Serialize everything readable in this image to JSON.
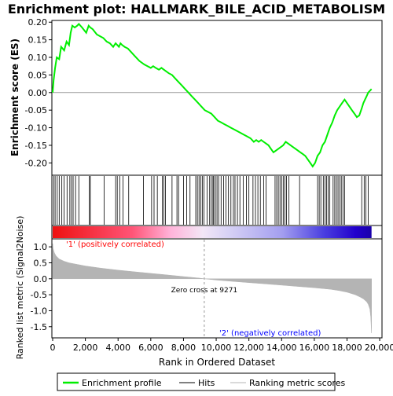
{
  "title": "Enrichment plot: HALLMARK_BILE_ACID_METABOLISM",
  "colors": {
    "profile": "#00ee00",
    "hits": "#000000",
    "metric": "#b4b4b4",
    "positive_label": "#ff0000",
    "negative_label": "#0000ff",
    "zero_line": "#999999"
  },
  "legend": {
    "profile": "Enrichment profile",
    "hits": "Hits",
    "metric": "Ranking metric scores"
  },
  "chart_data": [
    {
      "type": "line",
      "panel": "enrichment",
      "ylabel": "Enrichment score (ES)",
      "xlim": [
        0,
        20500
      ],
      "ylim": [
        -0.235,
        0.205
      ],
      "yticks": [
        0.2,
        0.15,
        0.1,
        0.05,
        0.0,
        -0.05,
        -0.1,
        -0.15,
        -0.2
      ],
      "ytick_labels": [
        "0.20",
        "0.15",
        "0.10",
        "0.05",
        "0.00",
        "-0.05",
        "-0.10",
        "-0.15",
        "-0.20"
      ],
      "series": [
        {
          "x": [
            0,
            60,
            150,
            250,
            400,
            520,
            700,
            850,
            1000,
            1100,
            1200,
            1350,
            1500,
            1600,
            1800,
            2050,
            2200,
            2300,
            2450,
            2700,
            2900,
            3100,
            3300,
            3500,
            3700,
            3850,
            3950,
            4050,
            4150,
            4250,
            4400,
            4600,
            4800,
            5000,
            5300,
            5600,
            5800,
            6000,
            6150,
            6300,
            6500,
            6650,
            6800,
            6950,
            7100,
            7300,
            7500,
            7700,
            7900,
            8100,
            8300,
            8500,
            8700,
            8900,
            9100,
            9300,
            9500,
            9700,
            9900,
            10100,
            10300,
            10500,
            10700,
            10900,
            11100,
            11300,
            11500,
            11700,
            11900,
            12100,
            12300,
            12450,
            12600,
            12750,
            12900,
            13050,
            13200,
            13350,
            13500,
            13650,
            13800,
            13950,
            14100,
            14250,
            14400,
            14550,
            14700,
            14850,
            15000,
            15150,
            15300,
            15450,
            15600,
            15750,
            15900,
            16050,
            16200,
            16350,
            16500,
            16650,
            16800,
            16950,
            17100,
            17250,
            17400,
            17550,
            17700,
            17850,
            18000,
            18150,
            18300,
            18450,
            18600,
            18750,
            18900,
            19000,
            19100,
            19200,
            19300,
            19400,
            19500
          ],
          "y": [
            0.0,
            0.035,
            0.07,
            0.1,
            0.095,
            0.13,
            0.12,
            0.145,
            0.135,
            0.17,
            0.19,
            0.185,
            0.19,
            0.195,
            0.185,
            0.17,
            0.19,
            0.185,
            0.18,
            0.165,
            0.16,
            0.155,
            0.145,
            0.14,
            0.13,
            0.14,
            0.135,
            0.13,
            0.14,
            0.135,
            0.13,
            0.125,
            0.115,
            0.105,
            0.09,
            0.08,
            0.075,
            0.07,
            0.075,
            0.07,
            0.065,
            0.07,
            0.065,
            0.06,
            0.055,
            0.05,
            0.04,
            0.03,
            0.02,
            0.01,
            0.0,
            -0.01,
            -0.02,
            -0.03,
            -0.04,
            -0.05,
            -0.055,
            -0.06,
            -0.07,
            -0.08,
            -0.085,
            -0.09,
            -0.095,
            -0.1,
            -0.105,
            -0.11,
            -0.115,
            -0.12,
            -0.125,
            -0.13,
            -0.14,
            -0.135,
            -0.14,
            -0.135,
            -0.14,
            -0.145,
            -0.15,
            -0.16,
            -0.17,
            -0.165,
            -0.16,
            -0.155,
            -0.15,
            -0.14,
            -0.145,
            -0.15,
            -0.155,
            -0.16,
            -0.165,
            -0.17,
            -0.175,
            -0.18,
            -0.19,
            -0.2,
            -0.21,
            -0.2,
            -0.18,
            -0.17,
            -0.15,
            -0.14,
            -0.12,
            -0.1,
            -0.085,
            -0.065,
            -0.05,
            -0.04,
            -0.03,
            -0.02,
            -0.03,
            -0.04,
            -0.05,
            -0.06,
            -0.07,
            -0.065,
            -0.045,
            -0.03,
            -0.02,
            -0.01,
            0.0,
            0.005,
            0.01
          ]
        }
      ]
    },
    {
      "type": "scatter",
      "panel": "hits",
      "xlim": [
        0,
        20500
      ],
      "hit_positions": [
        60,
        150,
        280,
        400,
        560,
        700,
        880,
        1050,
        1150,
        1250,
        1400,
        1600,
        2250,
        2300,
        3150,
        3850,
        3950,
        4100,
        4300,
        4650,
        5550,
        6050,
        6200,
        6400,
        6700,
        6800,
        6900,
        7300,
        7600,
        7700,
        8000,
        8200,
        8400,
        8750,
        8850,
        8950,
        9050,
        9150,
        9250,
        9450,
        9600,
        9700,
        9800,
        9850,
        9950,
        10050,
        10150,
        10300,
        10450,
        10600,
        10750,
        10900,
        11050,
        11150,
        11300,
        11450,
        11650,
        11850,
        12000,
        12250,
        12400,
        12550,
        12700,
        12900,
        13050,
        13600,
        13700,
        13800,
        13900,
        14000,
        14100,
        14200,
        14300,
        14450,
        15100,
        16200,
        16300,
        16400,
        16550,
        16650,
        16750,
        16850,
        16950,
        17150,
        17250,
        17350,
        17450,
        17550,
        17650,
        17750,
        17850,
        18900,
        19050,
        19150,
        19300
      ]
    },
    {
      "type": "area",
      "panel": "ranked_metric",
      "ylabel": "Ranked list metric (Signal2Noise)",
      "xlabel": "Rank in Ordered Dataset",
      "xlim": [
        0,
        20500
      ],
      "ylim": [
        -1.85,
        1.25
      ],
      "yticks": [
        1.0,
        0.5,
        0.0,
        -0.5,
        -1.0,
        -1.5
      ],
      "ytick_labels": [
        "1.0",
        "0.5",
        "0.0",
        "-0.5",
        "-1.0",
        "-1.5"
      ],
      "xticks": [
        0,
        2000,
        4000,
        6000,
        8000,
        10000,
        12000,
        14000,
        16000,
        18000,
        20000
      ],
      "xtick_labels": [
        "0",
        "2,000",
        "4,000",
        "6,000",
        "8,000",
        "10,000",
        "12,000",
        "14,000",
        "16,000",
        "18,000",
        "20,000"
      ],
      "x": [
        0,
        30,
        100,
        200,
        400,
        700,
        1000,
        1500,
        2000,
        3000,
        4000,
        5000,
        6000,
        7000,
        8000,
        9000,
        9271,
        10000,
        11000,
        12000,
        13000,
        14000,
        15000,
        16000,
        17000,
        17500,
        18000,
        18500,
        18800,
        19000,
        19200,
        19300,
        19400,
        19450,
        19500
      ],
      "values": [
        1.1,
        0.95,
        0.82,
        0.72,
        0.62,
        0.55,
        0.5,
        0.45,
        0.4,
        0.33,
        0.27,
        0.22,
        0.17,
        0.12,
        0.07,
        0.02,
        0.0,
        -0.04,
        -0.08,
        -0.12,
        -0.16,
        -0.2,
        -0.24,
        -0.28,
        -0.33,
        -0.37,
        -0.42,
        -0.5,
        -0.57,
        -0.63,
        -0.72,
        -0.8,
        -0.95,
        -1.2,
        -1.7
      ],
      "zero_cross_label": "Zero cross at 9271",
      "zero_cross": 9271,
      "positive_label": "'1' (positively correlated)",
      "negative_label": "'2' (negatively correlated)"
    }
  ]
}
